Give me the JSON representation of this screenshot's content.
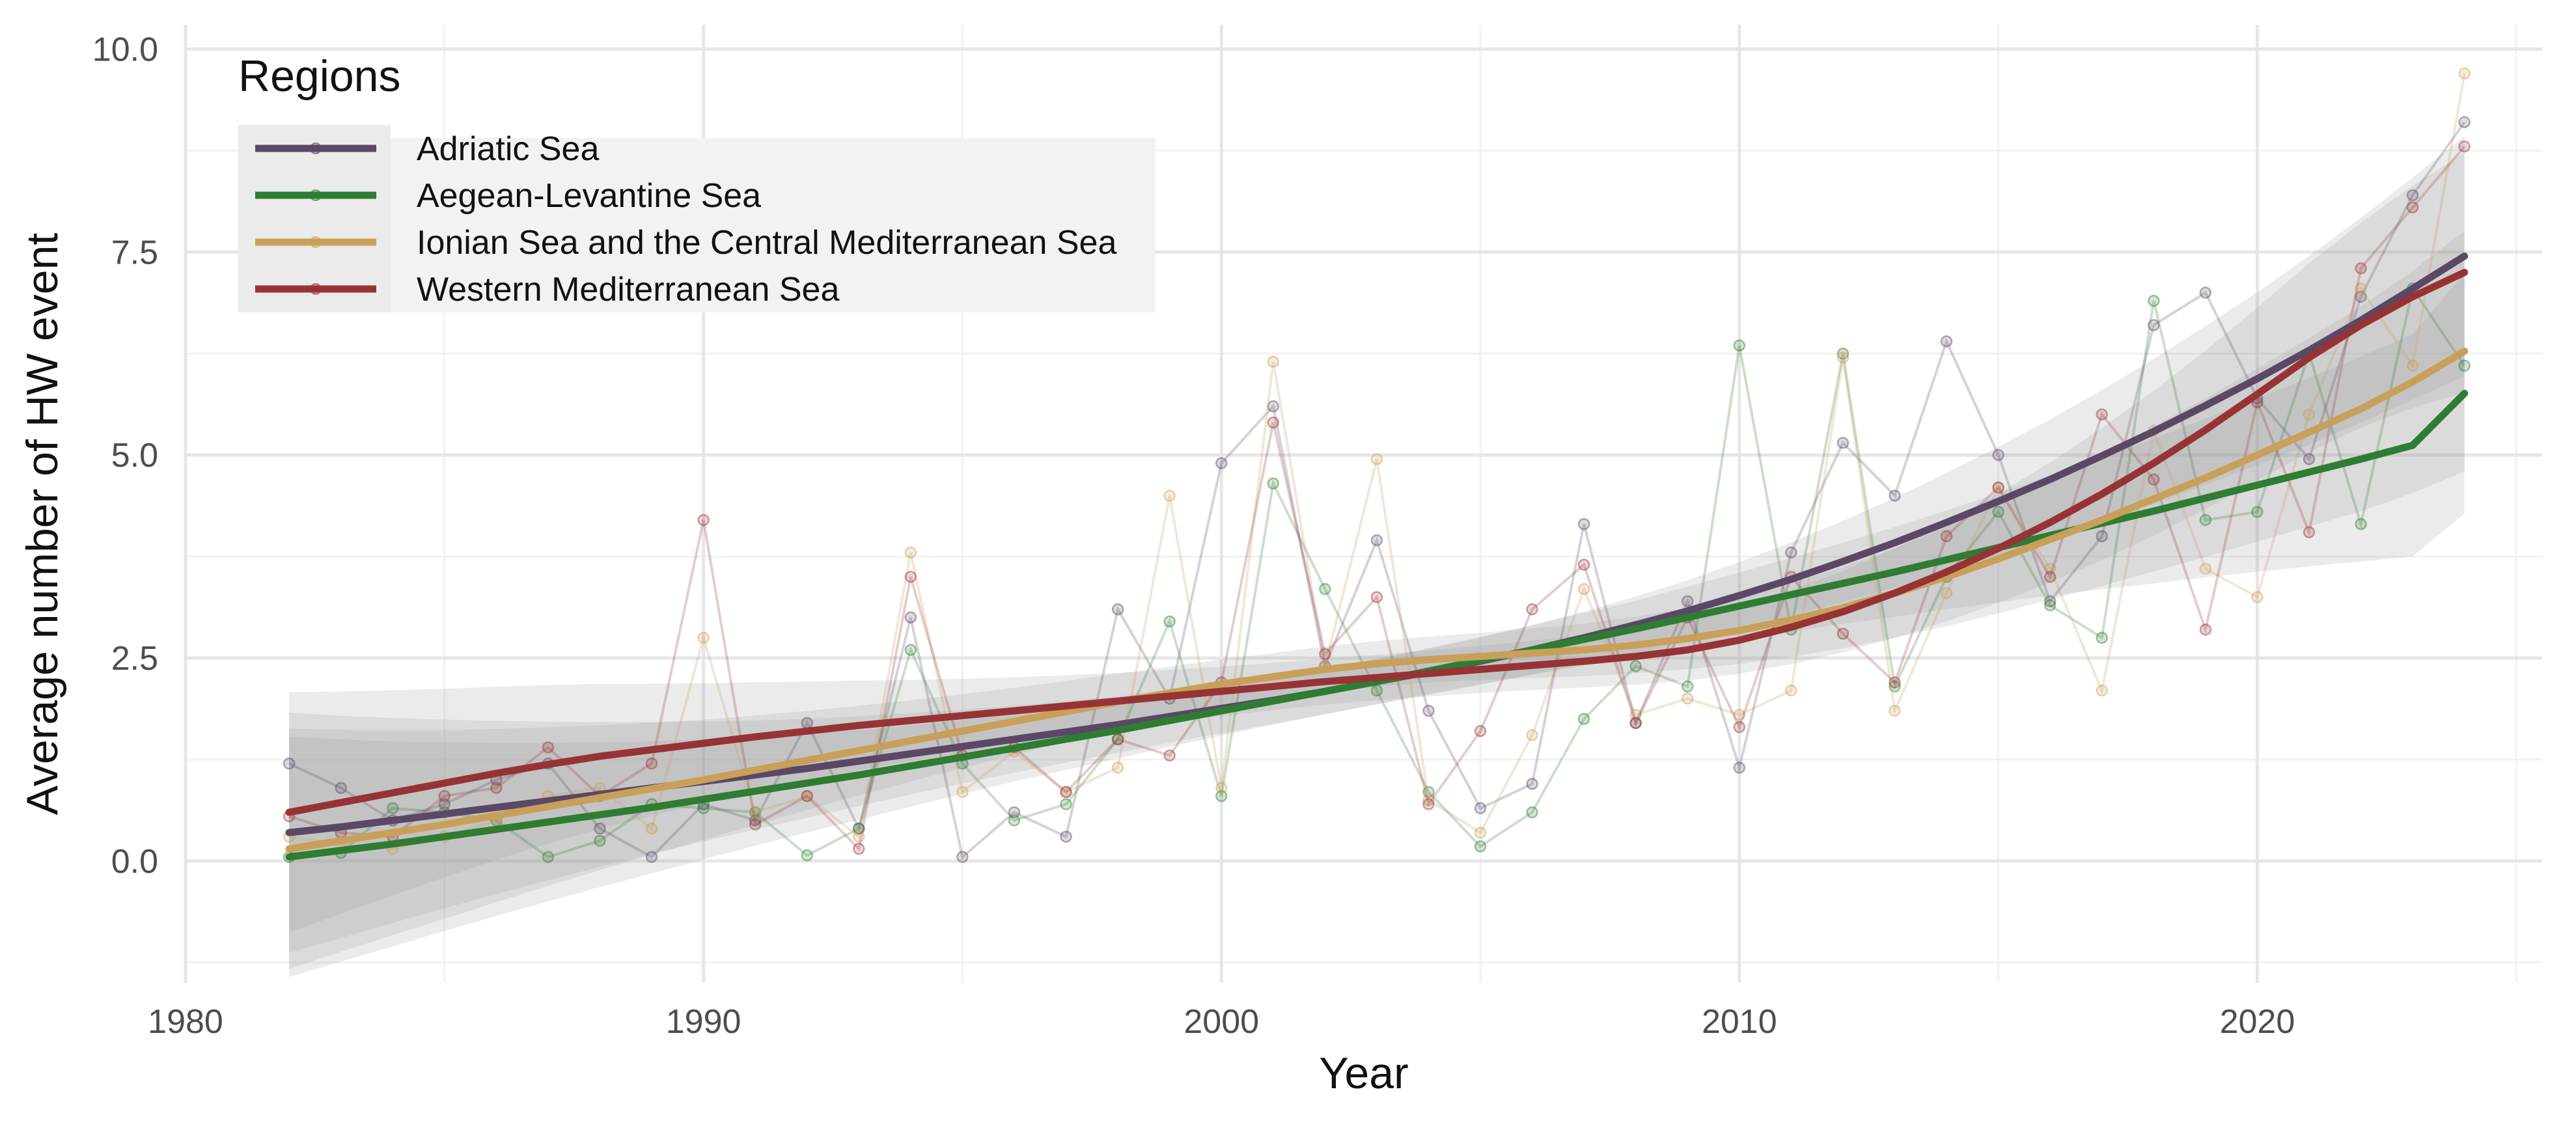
{
  "chart_data": {
    "type": "line",
    "xlabel": "Year",
    "ylabel": "Average number of HW event",
    "xlim": [
      1980,
      2025.5
    ],
    "ylim": [
      -1.5,
      10.3
    ],
    "x_ticks": [
      1980,
      1990,
      2000,
      2010,
      2020
    ],
    "x_tick_labels": [
      "1980",
      "1990",
      "2000",
      "2010",
      "2020"
    ],
    "y_ticks": [
      0,
      2.5,
      5,
      7.5,
      10
    ],
    "y_tick_labels": [
      "0.0",
      "2.5",
      "5.0",
      "7.5",
      "10.0"
    ],
    "grid": true,
    "legend": {
      "title": "Regions",
      "position": "top-left"
    },
    "x": [
      1982,
      1983,
      1984,
      1985,
      1986,
      1987,
      1988,
      1989,
      1990,
      1991,
      1992,
      1993,
      1994,
      1995,
      1996,
      1997,
      1998,
      1999,
      2000,
      2001,
      2002,
      2003,
      2004,
      2005,
      2006,
      2007,
      2008,
      2009,
      2010,
      2011,
      2012,
      2013,
      2014,
      2015,
      2016,
      2017,
      2018,
      2019,
      2020,
      2021,
      2022,
      2023,
      2024
    ],
    "series": [
      {
        "name": "Adriatic Sea",
        "color": "#5b4766",
        "values": [
          1.2,
          0.9,
          0.5,
          0.7,
          1.0,
          1.2,
          0.4,
          0.05,
          0.7,
          0.5,
          1.7,
          0.4,
          3.0,
          0.05,
          0.6,
          0.3,
          3.1,
          2.0,
          4.9,
          5.6,
          2.4,
          3.95,
          1.85,
          0.65,
          0.95,
          4.15,
          1.7,
          3.2,
          1.15,
          3.8,
          5.15,
          4.5,
          6.4,
          5.0,
          3.2,
          4.0,
          6.6,
          7.0,
          5.7,
          4.95,
          6.95,
          8.2,
          9.1
        ],
        "trend": [
          0.35,
          0.42,
          0.5,
          0.58,
          0.66,
          0.74,
          0.82,
          0.9,
          0.98,
          1.06,
          1.14,
          1.23,
          1.32,
          1.41,
          1.5,
          1.59,
          1.68,
          1.78,
          1.88,
          1.98,
          2.09,
          2.21,
          2.33,
          2.46,
          2.6,
          2.75,
          2.91,
          3.08,
          3.27,
          3.47,
          3.69,
          3.92,
          4.17,
          4.43,
          4.7,
          4.99,
          5.29,
          5.61,
          5.94,
          6.29,
          6.66,
          7.05,
          7.45
        ]
      },
      {
        "name": "Aegean-Levantine Sea",
        "color": "#2e7d32",
        "values": [
          0.05,
          0.1,
          0.65,
          0.6,
          0.5,
          0.05,
          0.25,
          0.7,
          0.65,
          0.6,
          0.07,
          0.4,
          2.6,
          1.2,
          0.5,
          0.7,
          1.5,
          2.95,
          0.8,
          4.65,
          3.35,
          2.1,
          0.85,
          0.18,
          0.6,
          1.75,
          2.4,
          2.15,
          6.35,
          2.85,
          6.25,
          2.15,
          3.5,
          4.3,
          3.15,
          2.75,
          6.9,
          4.2,
          4.3,
          6.25,
          4.15,
          7.05,
          6.1
        ],
        "trend": [
          0.05,
          0.13,
          0.21,
          0.3,
          0.39,
          0.48,
          0.57,
          0.66,
          0.76,
          0.86,
          0.96,
          1.06,
          1.17,
          1.28,
          1.39,
          1.5,
          1.61,
          1.73,
          1.85,
          1.97,
          2.09,
          2.21,
          2.34,
          2.47,
          2.6,
          2.73,
          2.86,
          3.0,
          3.14,
          3.28,
          3.42,
          3.56,
          3.71,
          3.86,
          4.01,
          4.16,
          4.31,
          4.47,
          4.63,
          4.79,
          4.95,
          5.12,
          5.76
        ]
      },
      {
        "name": "Ionian Sea and the Central Mediterranean Sea",
        "color": "#c9a05a",
        "values": [
          0.3,
          0.2,
          0.15,
          0.3,
          0.5,
          0.8,
          0.9,
          0.4,
          2.75,
          0.6,
          0.8,
          0.3,
          3.8,
          0.85,
          1.35,
          0.85,
          1.15,
          4.5,
          0.9,
          6.15,
          2.4,
          4.95,
          0.75,
          0.35,
          1.55,
          3.35,
          1.8,
          2.0,
          1.8,
          2.1,
          6.2,
          1.85,
          3.3,
          4.6,
          3.6,
          2.1,
          5.3,
          3.6,
          3.25,
          5.5,
          7.05,
          6.1,
          9.7
        ],
        "trend": [
          0.15,
          0.25,
          0.35,
          0.45,
          0.56,
          0.67,
          0.78,
          0.89,
          1.0,
          1.12,
          1.24,
          1.36,
          1.48,
          1.6,
          1.72,
          1.84,
          1.96,
          2.07,
          2.18,
          2.27,
          2.36,
          2.43,
          2.48,
          2.52,
          2.56,
          2.6,
          2.66,
          2.74,
          2.84,
          2.97,
          3.12,
          3.3,
          3.5,
          3.72,
          3.96,
          4.2,
          4.46,
          4.72,
          5.0,
          5.28,
          5.57,
          5.9,
          6.28
        ]
      },
      {
        "name": "Western Mediterranean Sea",
        "color": "#973335",
        "values": [
          0.55,
          0.35,
          0.3,
          0.8,
          0.9,
          1.4,
          0.8,
          1.2,
          4.2,
          0.45,
          0.8,
          0.15,
          3.5,
          1.3,
          1.4,
          0.85,
          1.5,
          1.3,
          2.2,
          5.4,
          2.55,
          3.25,
          0.7,
          1.6,
          3.1,
          3.65,
          1.7,
          3.0,
          1.65,
          3.5,
          2.8,
          2.2,
          4.0,
          4.6,
          3.5,
          5.5,
          4.7,
          2.85,
          5.65,
          4.05,
          7.3,
          8.05,
          8.8
        ],
        "trend": [
          0.6,
          0.72,
          0.84,
          0.96,
          1.08,
          1.19,
          1.29,
          1.37,
          1.45,
          1.53,
          1.6,
          1.67,
          1.73,
          1.79,
          1.85,
          1.91,
          1.97,
          2.03,
          2.09,
          2.15,
          2.21,
          2.26,
          2.31,
          2.36,
          2.41,
          2.46,
          2.52,
          2.6,
          2.72,
          2.88,
          3.07,
          3.3,
          3.56,
          3.85,
          4.17,
          4.52,
          4.9,
          5.31,
          5.75,
          6.2,
          6.6,
          6.95,
          7.25
        ]
      }
    ]
  }
}
